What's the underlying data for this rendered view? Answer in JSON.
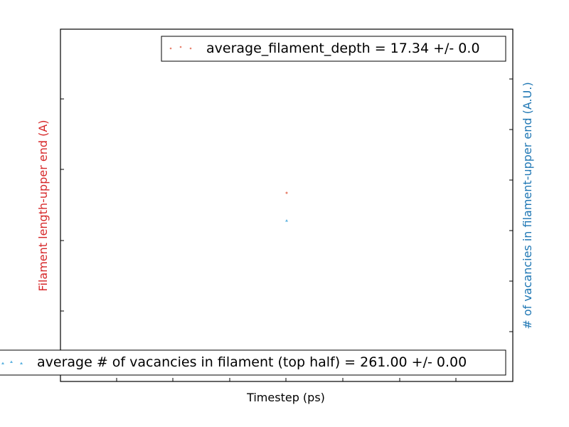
{
  "chart_data": {
    "type": "scatter",
    "title": "",
    "xlabel": "Timestep (ps)",
    "ylabel_left": "Filament length-upper end (A)",
    "ylabel_right": "# of vacancies in filament-upper end (A.U.)",
    "x_tick_labels_visible": false,
    "y_tick_labels_visible": false,
    "grid": false,
    "series": [
      {
        "name": "average_filament_depth",
        "axis": "left",
        "marker": "circle",
        "color": "#e8836f",
        "x": [
          0
        ],
        "y": [
          17.34
        ],
        "legend": "average_filament_depth =  17.34 +/- 0.0",
        "legend_placement": "top-right"
      },
      {
        "name": "average # of vacancies in filament (top half)",
        "axis": "right",
        "marker": "triangle",
        "color": "#5fb3e0",
        "x": [
          0
        ],
        "y": [
          261.0
        ],
        "legend": "average # of vacancies in filament (top half) =  261.00 +/-  0.00",
        "legend_placement": "bottom-right"
      }
    ],
    "colors": {
      "left_axis_label": "#d62728",
      "right_axis_label": "#1f77b4",
      "frame": "#000000"
    }
  }
}
